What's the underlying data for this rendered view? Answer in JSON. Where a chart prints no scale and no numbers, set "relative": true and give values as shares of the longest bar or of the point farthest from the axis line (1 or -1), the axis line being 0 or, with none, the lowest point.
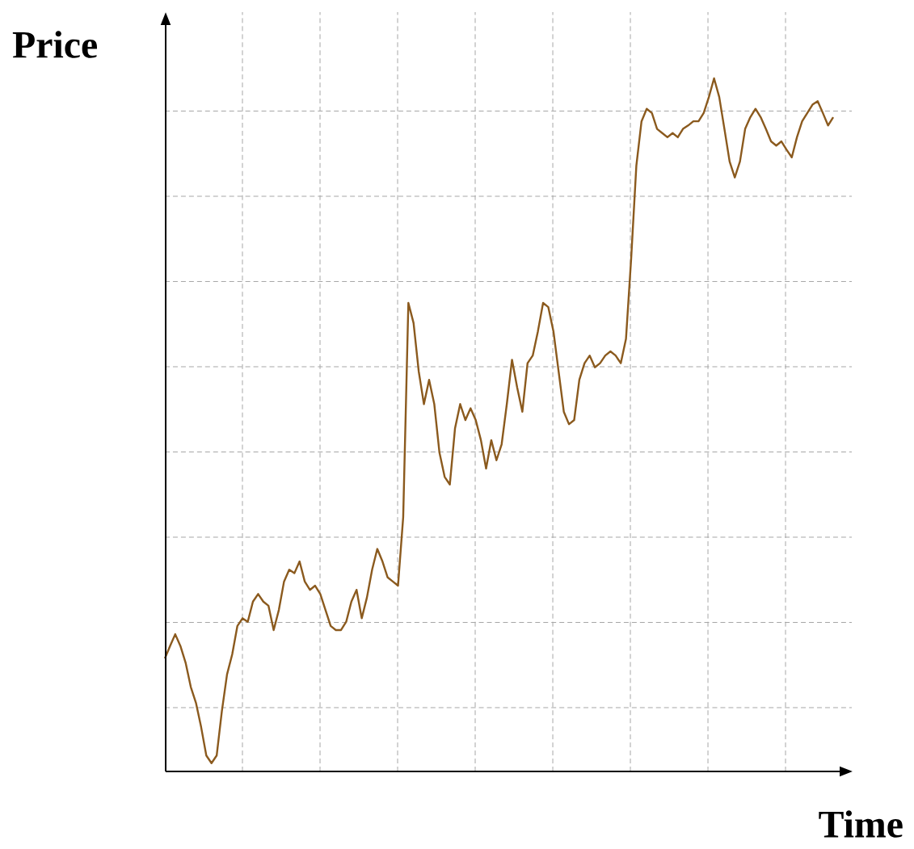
{
  "chart_data": {
    "type": "line",
    "relative": true,
    "xlabel": "Time",
    "ylabel": "Price",
    "grid": true,
    "categories": [
      null,
      null,
      null,
      null,
      null,
      null,
      null,
      null,
      null,
      null,
      null,
      null,
      null,
      null,
      null,
      null,
      null,
      null,
      null,
      null,
      null,
      null,
      null,
      null,
      null,
      null,
      null,
      null,
      null,
      null,
      null,
      null,
      null,
      null,
      null,
      null,
      null,
      null,
      null,
      null,
      null,
      null,
      null,
      null,
      null,
      null,
      null,
      null,
      null,
      null,
      null,
      null,
      null,
      null,
      null,
      null,
      null,
      null,
      null,
      null,
      null,
      null,
      null,
      null,
      null,
      null,
      null,
      null,
      null,
      null,
      null,
      null,
      null,
      null,
      null,
      null,
      null,
      null,
      null,
      null,
      null,
      null,
      null,
      null,
      null,
      null,
      null,
      null,
      null,
      null,
      null,
      null,
      null,
      null,
      null,
      null,
      null,
      null,
      null,
      null,
      null,
      null,
      null,
      null,
      null,
      null,
      null,
      null,
      null,
      null,
      null,
      null,
      null,
      null,
      null,
      null,
      null,
      null,
      null,
      null,
      null,
      null,
      null,
      null,
      null,
      null,
      null,
      null,
      null,
      null
    ],
    "series": [
      {
        "color": "#8b5a1e",
        "values": [
          0.163,
          0.181,
          0.198,
          0.181,
          0.157,
          0.122,
          0.099,
          0.064,
          0.023,
          0.012,
          0.023,
          0.087,
          0.14,
          0.169,
          0.21,
          0.221,
          0.216,
          0.245,
          0.256,
          0.245,
          0.239,
          0.204,
          0.233,
          0.274,
          0.291,
          0.286,
          0.303,
          0.274,
          0.262,
          0.268,
          0.256,
          0.233,
          0.21,
          0.204,
          0.204,
          0.216,
          0.245,
          0.262,
          0.221,
          0.251,
          0.291,
          0.321,
          0.303,
          0.28,
          0.274,
          0.268,
          0.367,
          0.676,
          0.647,
          0.577,
          0.53,
          0.565,
          0.53,
          0.46,
          0.425,
          0.414,
          0.495,
          0.53,
          0.507,
          0.524,
          0.507,
          0.478,
          0.437,
          0.478,
          0.449,
          0.472,
          0.53,
          0.594,
          0.554,
          0.519,
          0.589,
          0.6,
          0.635,
          0.676,
          0.67,
          0.635,
          0.577,
          0.519,
          0.501,
          0.507,
          0.565,
          0.589,
          0.6,
          0.583,
          0.589,
          0.6,
          0.606,
          0.6,
          0.589,
          0.624,
          0.74,
          0.874,
          0.938,
          0.956,
          0.95,
          0.927,
          0.921,
          0.915,
          0.921,
          0.915,
          0.927,
          0.932,
          0.938,
          0.938,
          0.95,
          0.973,
          1,
          0.973,
          0.927,
          0.88,
          0.857,
          0.88,
          0.927,
          0.944,
          0.956,
          0.944,
          0.927,
          0.909,
          0.903,
          0.909,
          0.897,
          0.886,
          0.915,
          0.938,
          0.95,
          0.962,
          0.967,
          0.95,
          0.932,
          0.944
        ]
      }
    ]
  }
}
